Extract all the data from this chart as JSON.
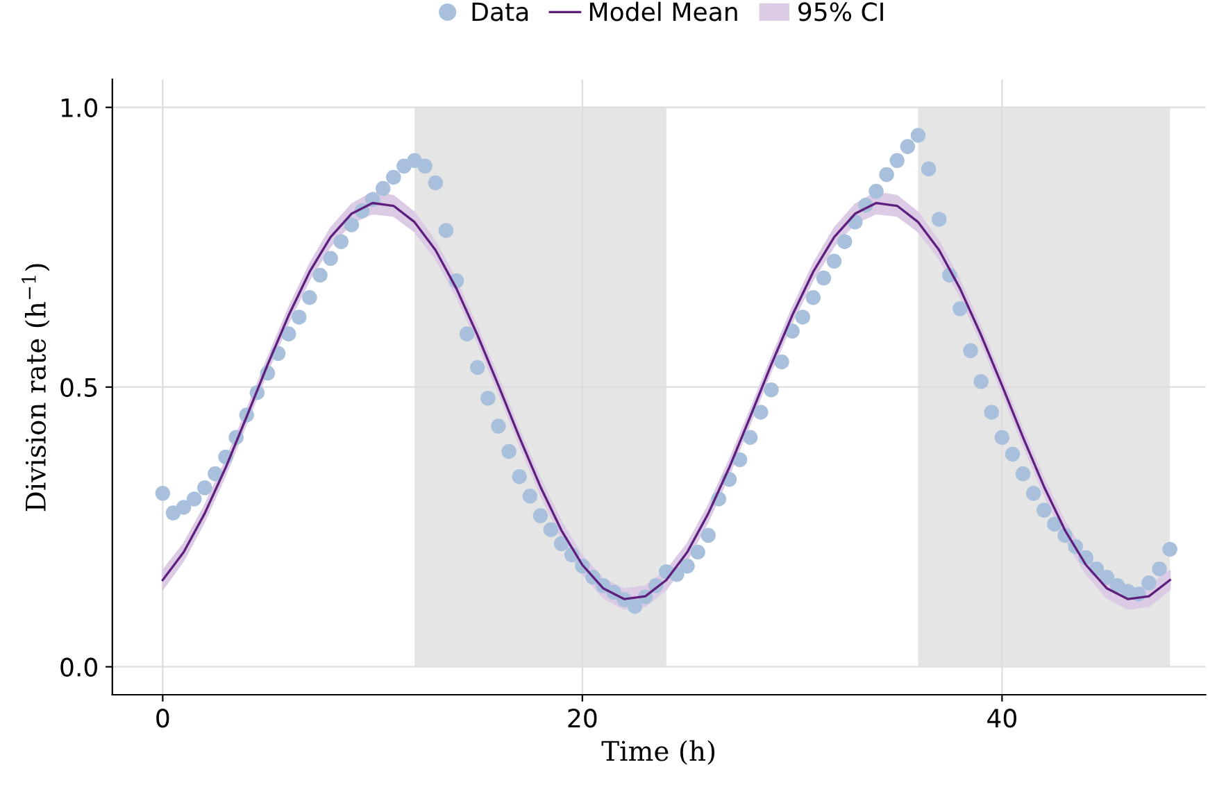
{
  "chart_data": {
    "type": "scatter",
    "xlabel": "Time (h)",
    "ylabel": "Division rate (h$^{−1}$)",
    "xlim": [
      -2.4,
      49.7
    ],
    "ylim": [
      -0.05,
      1.05
    ],
    "xticks": [
      0,
      20,
      40
    ],
    "yticks": [
      {
        "value": 0,
        "label": "0.0"
      },
      {
        "value": 0.5,
        "label": "0.5"
      },
      {
        "value": 1,
        "label": "1.0"
      }
    ],
    "grid": true,
    "legend": "top",
    "bands": [
      {
        "axis": "x",
        "from": 12,
        "to": 24,
        "color": "#e5e5e5"
      },
      {
        "axis": "x",
        "from": 36,
        "to": 48,
        "color": "#e5e5e5"
      }
    ],
    "series": [
      {
        "name": "Data",
        "marker": "circle",
        "color": "#a9c0dc",
        "x": [
          0,
          0.5,
          1,
          1.5,
          2,
          2.5,
          3,
          3.5,
          4,
          4.5,
          5,
          5.5,
          6,
          6.5,
          7,
          7.5,
          8,
          8.5,
          9,
          9.5,
          10,
          10.5,
          11,
          11.5,
          12,
          12.5,
          13,
          13.5,
          14,
          14.5,
          15,
          15.5,
          16,
          16.5,
          17,
          17.5,
          18,
          18.5,
          19,
          19.5,
          20,
          20.5,
          21,
          21.5,
          22,
          22.5,
          23,
          23.5,
          24,
          24.5,
          25,
          25.5,
          26,
          26.5,
          27,
          27.5,
          28,
          28.5,
          29,
          29.5,
          30,
          30.5,
          31,
          31.5,
          32,
          32.5,
          33,
          33.5,
          34,
          34.5,
          35,
          35.5,
          36,
          36.5,
          37,
          37.5,
          38,
          38.5,
          39,
          39.5,
          40,
          40.5,
          41,
          41.5,
          42,
          42.5,
          43,
          43.5,
          44,
          44.5,
          45,
          45.5,
          46,
          46.5,
          47,
          47.5,
          48
        ],
        "values": [
          0.31,
          0.275,
          0.285,
          0.3,
          0.32,
          0.345,
          0.375,
          0.41,
          0.45,
          0.49,
          0.525,
          0.56,
          0.595,
          0.625,
          0.66,
          0.7,
          0.73,
          0.76,
          0.79,
          0.815,
          0.835,
          0.855,
          0.875,
          0.895,
          0.905,
          0.895,
          0.865,
          0.78,
          0.69,
          0.595,
          0.535,
          0.48,
          0.43,
          0.385,
          0.34,
          0.305,
          0.27,
          0.245,
          0.22,
          0.2,
          0.18,
          0.16,
          0.145,
          0.133,
          0.12,
          0.108,
          0.125,
          0.145,
          0.17,
          0.165,
          0.18,
          0.205,
          0.235,
          0.3,
          0.335,
          0.37,
          0.41,
          0.455,
          0.495,
          0.545,
          0.6,
          0.625,
          0.66,
          0.695,
          0.725,
          0.76,
          0.795,
          0.825,
          0.85,
          0.88,
          0.905,
          0.93,
          0.95,
          0.89,
          0.8,
          0.7,
          0.64,
          0.565,
          0.51,
          0.455,
          0.41,
          0.38,
          0.345,
          0.31,
          0.28,
          0.255,
          0.235,
          0.215,
          0.195,
          0.175,
          0.16,
          0.145,
          0.135,
          0.13,
          0.15,
          0.175,
          0.21
        ]
      },
      {
        "name": "Model Mean",
        "type": "line",
        "marker": "none",
        "color": "#5e1f7f",
        "line_style": "solid",
        "x": [
          0,
          1,
          2,
          3,
          4,
          5,
          6,
          7,
          8,
          9,
          10,
          11,
          12,
          13,
          14,
          15,
          16,
          17,
          18,
          19,
          20,
          21,
          22,
          23,
          24,
          25,
          26,
          27,
          28,
          29,
          30,
          31,
          32,
          33,
          34,
          35,
          36,
          37,
          38,
          39,
          40,
          41,
          42,
          43,
          44,
          45,
          46,
          47,
          48
        ],
        "values": [
          0.155,
          0.205,
          0.274,
          0.356,
          0.447,
          0.54,
          0.628,
          0.706,
          0.768,
          0.81,
          0.829,
          0.824,
          0.795,
          0.745,
          0.676,
          0.593,
          0.503,
          0.41,
          0.322,
          0.244,
          0.182,
          0.14,
          0.121,
          0.126,
          0.155,
          0.205,
          0.274,
          0.356,
          0.447,
          0.54,
          0.628,
          0.706,
          0.768,
          0.81,
          0.829,
          0.824,
          0.795,
          0.745,
          0.676,
          0.593,
          0.503,
          0.41,
          0.322,
          0.244,
          0.182,
          0.14,
          0.121,
          0.126,
          0.155
        ],
        "lower": [
          0.138,
          0.19,
          0.26,
          0.343,
          0.435,
          0.528,
          0.615,
          0.692,
          0.752,
          0.793,
          0.81,
          0.806,
          0.778,
          0.73,
          0.662,
          0.58,
          0.49,
          0.397,
          0.308,
          0.229,
          0.166,
          0.123,
          0.103,
          0.108,
          0.138,
          0.19,
          0.26,
          0.343,
          0.435,
          0.528,
          0.615,
          0.692,
          0.752,
          0.793,
          0.81,
          0.806,
          0.778,
          0.73,
          0.662,
          0.58,
          0.49,
          0.397,
          0.308,
          0.229,
          0.166,
          0.123,
          0.103,
          0.108,
          0.138
        ],
        "upper": [
          0.172,
          0.22,
          0.288,
          0.369,
          0.459,
          0.552,
          0.641,
          0.72,
          0.784,
          0.827,
          0.848,
          0.842,
          0.812,
          0.76,
          0.69,
          0.606,
          0.516,
          0.423,
          0.336,
          0.259,
          0.198,
          0.157,
          0.139,
          0.144,
          0.172,
          0.22,
          0.288,
          0.369,
          0.459,
          0.552,
          0.641,
          0.72,
          0.784,
          0.827,
          0.848,
          0.842,
          0.812,
          0.76,
          0.69,
          0.606,
          0.516,
          0.423,
          0.336,
          0.259,
          0.198,
          0.157,
          0.139,
          0.144,
          0.172
        ]
      },
      {
        "name": "95% CI",
        "type": "area",
        "color": "#dccbe5"
      }
    ]
  }
}
